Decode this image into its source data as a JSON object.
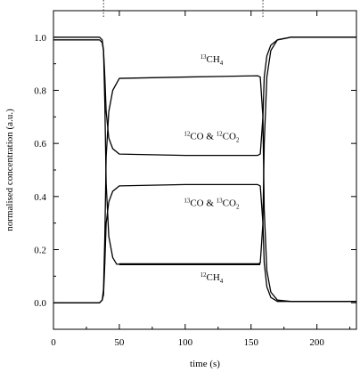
{
  "chart_data": {
    "type": "line",
    "title": "",
    "xlabel": "time (s)",
    "ylabel": "normalised concentration (a.u.)",
    "xlim": [
      0,
      230
    ],
    "ylim": [
      -0.1,
      1.1
    ],
    "xticks": [
      0,
      50,
      100,
      150,
      200
    ],
    "xtick_labels": [
      "0",
      "50",
      "100",
      "150",
      "200"
    ],
    "yticks": [
      0.0,
      0.2,
      0.4,
      0.6,
      0.8,
      1.0
    ],
    "ytick_labels": [
      "0.0",
      "0.2",
      "0.4",
      "0.6",
      "0.8",
      "1.0"
    ],
    "grid": false,
    "switch_markers_x": [
      38,
      159
    ],
    "series": [
      {
        "name": "¹³CH₄",
        "x": [
          0,
          35,
          37,
          38,
          39,
          40,
          42,
          45,
          50,
          100,
          155,
          157,
          159,
          160,
          162,
          165,
          170,
          180,
          230
        ],
        "y": [
          0,
          0,
          0.01,
          0.05,
          0.25,
          0.55,
          0.72,
          0.8,
          0.845,
          0.85,
          0.855,
          0.85,
          0.7,
          0.35,
          0.12,
          0.04,
          0.01,
          0.005,
          0.005
        ]
      },
      {
        "name": "¹²CO & ¹²CO₂",
        "x": [
          0,
          35,
          37,
          38,
          39,
          40,
          42,
          45,
          50,
          100,
          155,
          157,
          159,
          160,
          162,
          165,
          170,
          180,
          230
        ],
        "y": [
          0.99,
          0.99,
          0.98,
          0.95,
          0.85,
          0.72,
          0.62,
          0.58,
          0.56,
          0.555,
          0.555,
          0.56,
          0.7,
          0.85,
          0.93,
          0.97,
          0.99,
          1.0,
          1.0
        ]
      },
      {
        "name": "¹³CO & ¹³CO₂",
        "x": [
          0,
          35,
          37,
          38,
          39,
          40,
          42,
          45,
          50,
          100,
          155,
          157,
          159,
          160,
          162,
          165,
          170,
          180,
          230
        ],
        "y": [
          0,
          0,
          0.01,
          0.03,
          0.15,
          0.3,
          0.38,
          0.42,
          0.44,
          0.445,
          0.445,
          0.44,
          0.3,
          0.15,
          0.06,
          0.02,
          0.005,
          0.005,
          0.005
        ]
      },
      {
        "name": "¹²CH₄",
        "x": [
          0,
          35,
          37,
          38,
          39,
          40,
          42,
          45,
          48,
          100,
          155,
          157,
          159,
          160,
          162,
          165,
          170,
          180,
          230
        ],
        "y": [
          1.0,
          1.0,
          0.99,
          0.95,
          0.75,
          0.45,
          0.25,
          0.17,
          0.145,
          0.145,
          0.145,
          0.15,
          0.3,
          0.6,
          0.85,
          0.95,
          0.99,
          1.0,
          1.0
        ]
      }
    ],
    "bold_segment": {
      "series": "¹²CH₄",
      "x": [
        50,
        157
      ],
      "y": 0.145
    },
    "annotations": [
      {
        "label": "¹³CH₄",
        "sup": "13",
        "base": "CH",
        "sub": "4",
        "tail": "",
        "x": 120,
        "y": 0.905
      },
      {
        "label": "¹²CO & ¹²CO₂",
        "sup": "12",
        "base": "CO & ",
        "sup2": "12",
        "base2": "CO",
        "sub": "2",
        "x": 120,
        "y": 0.615
      },
      {
        "label": "¹³CO & ¹³CO₂",
        "sup": "13",
        "base": "CO & ",
        "sup2": "13",
        "base2": "CO",
        "sub": "2",
        "x": 120,
        "y": 0.365
      },
      {
        "label": "¹²CH₄",
        "sup": "12",
        "base": "CH",
        "sub": "4",
        "tail": "",
        "x": 120,
        "y": 0.085
      }
    ]
  }
}
